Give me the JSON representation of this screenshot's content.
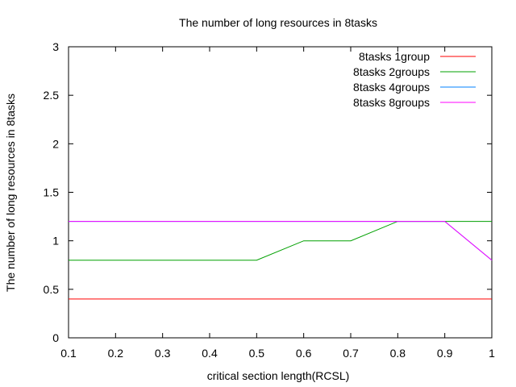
{
  "chart_data": {
    "type": "line",
    "title": "The number of long resources in 8tasks",
    "xlabel": "critical section length(RCSL)",
    "ylabel": "The number of long resources in 8tasks",
    "xlim": [
      0.1,
      1
    ],
    "ylim": [
      0,
      3
    ],
    "x_ticks": [
      "0.1",
      "0.2",
      "0.3",
      "0.4",
      "0.5",
      "0.6",
      "0.7",
      "0.8",
      "0.9",
      "1"
    ],
    "y_ticks": [
      "0",
      "0.5",
      "1",
      "1.5",
      "2",
      "2.5",
      "3"
    ],
    "grid": false,
    "legend_position": "top-right",
    "x": [
      0.1,
      0.2,
      0.3,
      0.4,
      0.5,
      0.6,
      0.7,
      0.8,
      0.9,
      1.0
    ],
    "series": [
      {
        "name": "8tasks 1group",
        "color": "#ff0000",
        "values": [
          0.4,
          0.4,
          0.4,
          0.4,
          0.4,
          0.4,
          0.4,
          0.4,
          0.4,
          0.4
        ]
      },
      {
        "name": "8tasks 2groups",
        "color": "#00a000",
        "values": [
          0.8,
          0.8,
          0.8,
          0.8,
          0.8,
          1.0,
          1.0,
          1.2,
          1.2,
          1.2
        ]
      },
      {
        "name": "8tasks 4groups",
        "color": "#0080ff",
        "values": [
          1.2,
          1.2,
          1.2,
          1.2,
          1.2,
          1.2,
          1.2,
          1.2,
          1.2,
          0.8
        ]
      },
      {
        "name": "8tasks 8groups",
        "color": "#ff00ff",
        "values": [
          1.2,
          1.2,
          1.2,
          1.2,
          1.2,
          1.2,
          1.2,
          1.2,
          1.2,
          0.8
        ]
      }
    ]
  }
}
